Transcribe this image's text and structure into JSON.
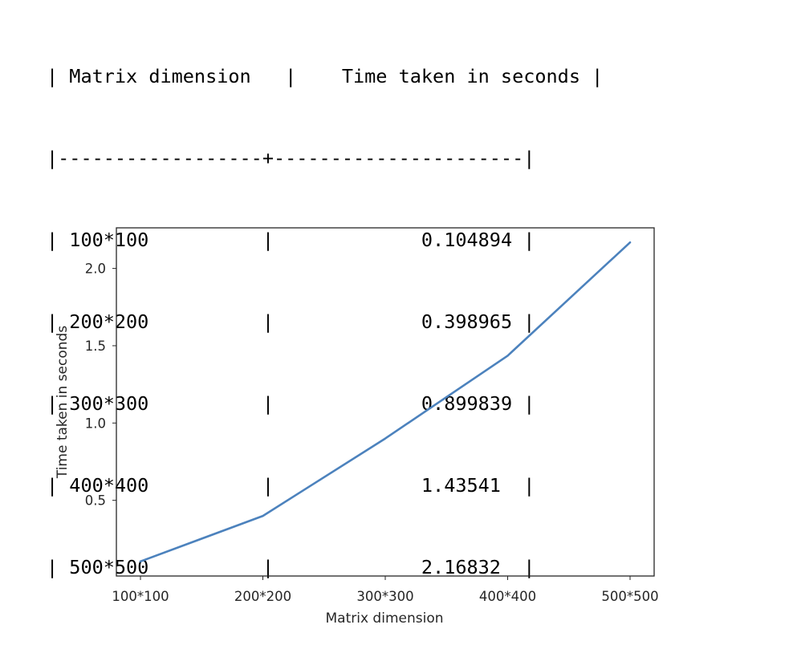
{
  "table": {
    "headers": [
      "Matrix dimension",
      "Time taken in seconds"
    ],
    "rows": [
      [
        "100*100",
        "0.104894"
      ],
      [
        "200*200",
        "0.398965"
      ],
      [
        "300*300",
        "0.899839"
      ],
      [
        "400*400",
        "1.43541"
      ],
      [
        "500*500",
        "2.16832"
      ]
    ]
  },
  "chart_data": {
    "type": "line",
    "categories": [
      "100*100",
      "200*200",
      "300*300",
      "400*400",
      "500*500"
    ],
    "series": [
      {
        "values": [
          0.104894,
          0.398965,
          0.899839,
          1.43541,
          2.16832
        ]
      }
    ],
    "xlabel": "Matrix dimension",
    "ylabel": "Time taken in seconds",
    "yticks": [
      0.5,
      1.0,
      1.5,
      2.0
    ],
    "ytick_labels": [
      "0.5",
      "1.0",
      "1.5",
      "2.0"
    ],
    "line_color": "#4c82bd",
    "grid": false,
    "legend": "none"
  }
}
